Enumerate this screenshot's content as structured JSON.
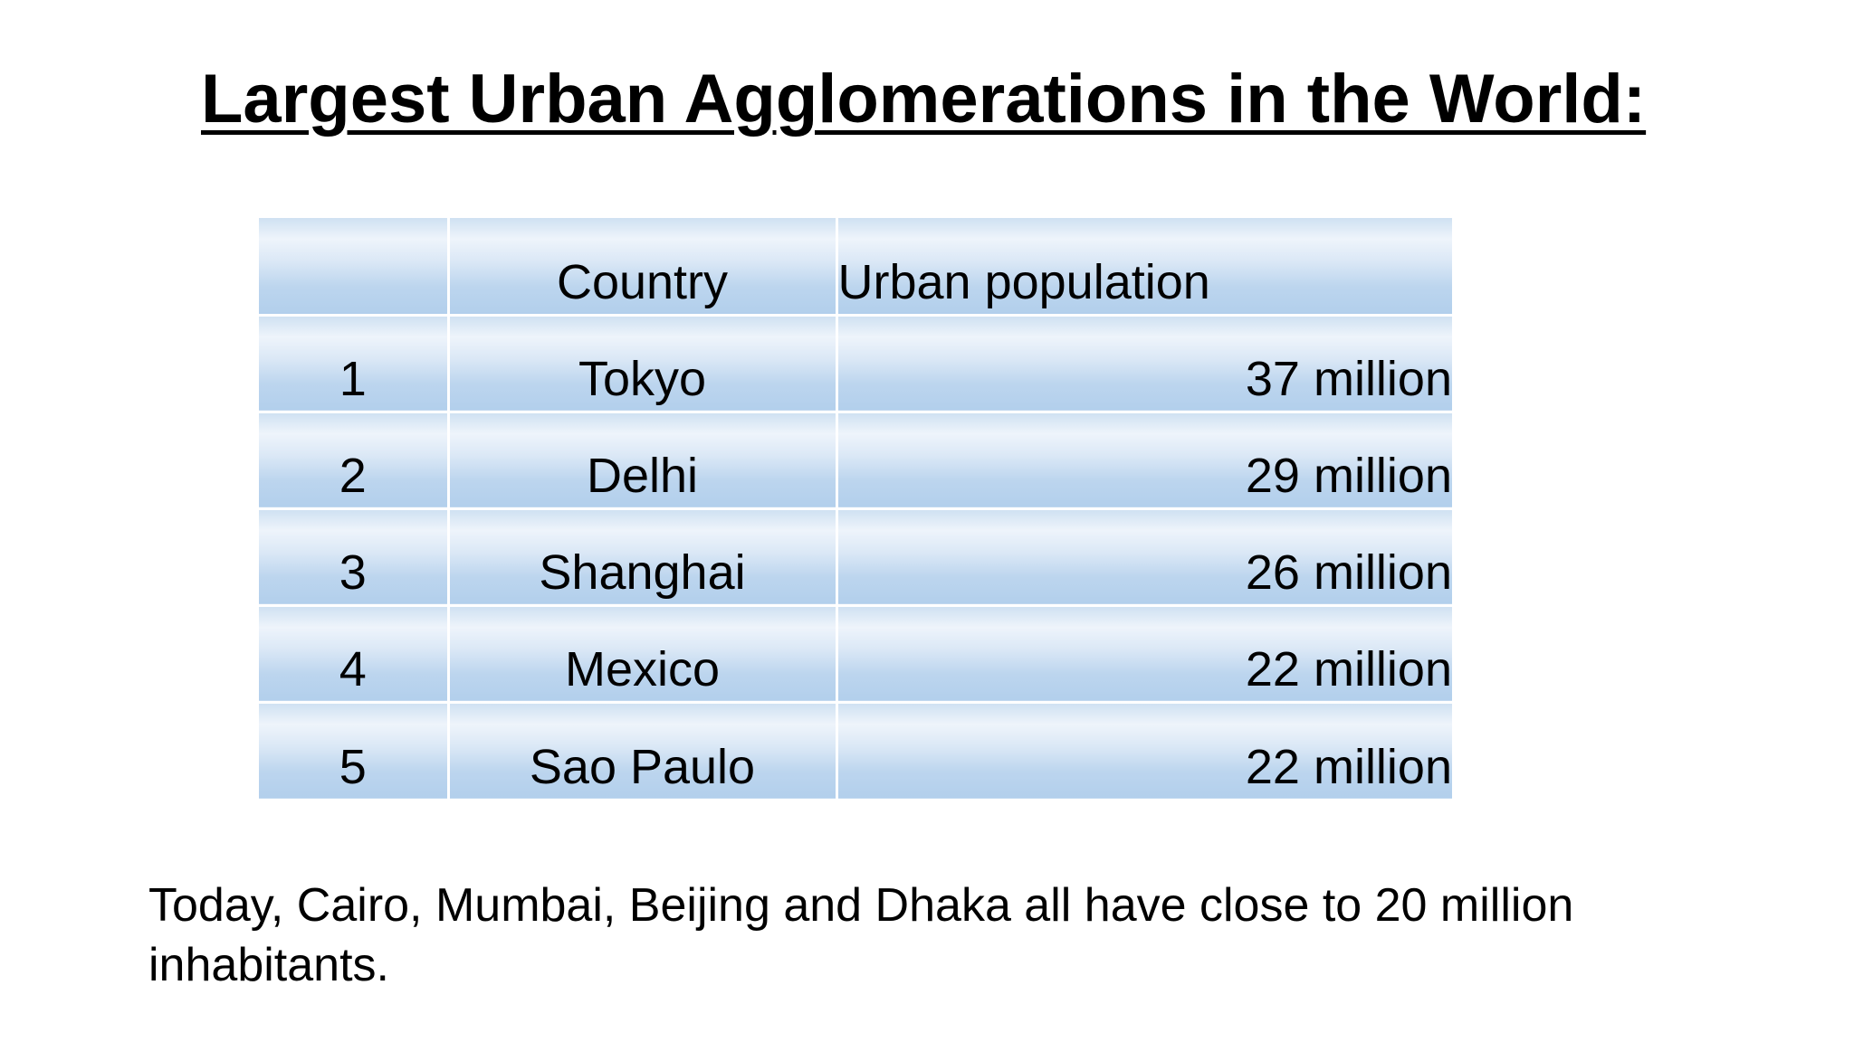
{
  "slide": {
    "title": "Largest Urban Agglomerations in the World:",
    "footnote": "Today, Cairo, Mumbai, Beijing and Dhaka all have close to 20 million inhabitants."
  },
  "table": {
    "headers": [
      "",
      "Country",
      "Urban population"
    ],
    "rows": [
      {
        "rank": "1",
        "city": "Tokyo",
        "population": "37 million"
      },
      {
        "rank": "2",
        "city": "Delhi",
        "population": "29 million"
      },
      {
        "rank": "3",
        "city": "Shanghai",
        "population": "26 million"
      },
      {
        "rank": "4",
        "city": "Mexico",
        "population": "22 million"
      },
      {
        "rank": "5",
        "city": "Sao Paulo",
        "population": "22 million"
      }
    ]
  },
  "colors": {
    "cell_fill": "#bcd5ee",
    "cell_highlight": "#eef4fb",
    "text": "#000000",
    "background": "#ffffff"
  }
}
